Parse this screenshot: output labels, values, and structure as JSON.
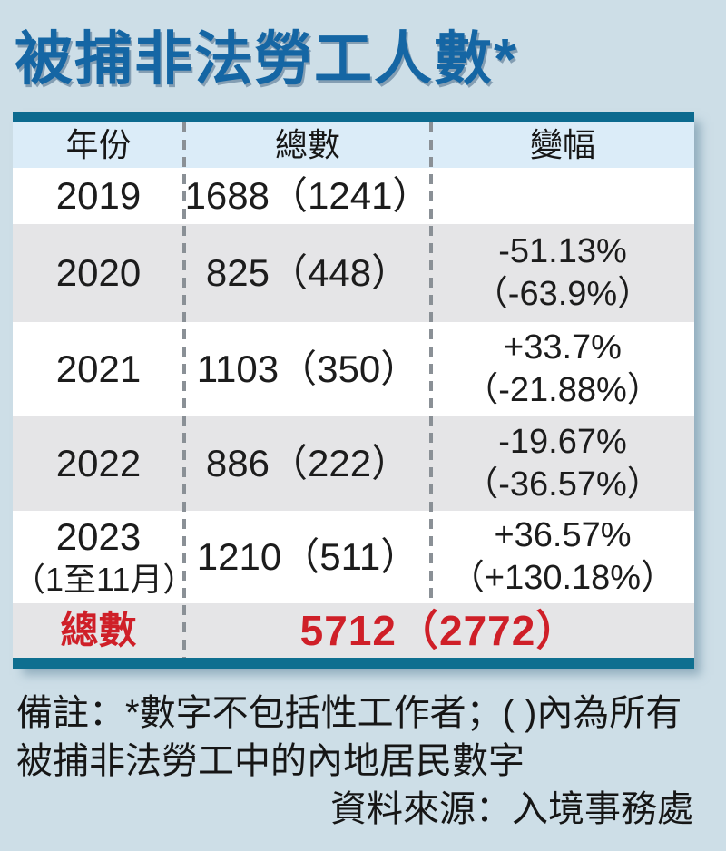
{
  "title": "被捕非法勞工人數*",
  "colors": {
    "background": "#cddee7",
    "title_blue": "#1566a4",
    "table_border_teal": "#0c6a8f",
    "header_row_blue": "#dbecf8",
    "alt_row_gray": "#e5e5e7",
    "highlight_red": "#cf1f28",
    "text_black": "#1c1c1c"
  },
  "table": {
    "headers": [
      "年份",
      "總數",
      "變幅"
    ],
    "rows": [
      {
        "year": "2019",
        "year_note": "",
        "total": "1688（1241）",
        "change1": "",
        "change2": ""
      },
      {
        "year": "2020",
        "year_note": "",
        "total": "825（448）",
        "change1": "-51.13%",
        "change2": "（-63.9%）"
      },
      {
        "year": "2021",
        "year_note": "",
        "total": "1103（350）",
        "change1": "+33.7%",
        "change2": "（-21.88%）"
      },
      {
        "year": "2022",
        "year_note": "",
        "total": "886（222）",
        "change1": "-19.67%",
        "change2": "（-36.57%）"
      },
      {
        "year": "2023",
        "year_note": "（1至11月）",
        "total": "1210（511）",
        "change1": "+36.57%",
        "change2": "（+130.18%）"
      }
    ],
    "total_row": {
      "label": "總數",
      "value": "5712（2772）"
    }
  },
  "notes": {
    "line1": "備註：*數字不包括性工作者；( )內為所有",
    "line2": "被捕非法勞工中的內地居民數字",
    "source": "資料來源：入境事務處"
  },
  "chart_data": {
    "type": "table",
    "title": "被捕非法勞工人數*",
    "columns": [
      "年份",
      "總數",
      "變幅"
    ],
    "rows": [
      [
        "2019",
        "1688（1241）",
        ""
      ],
      [
        "2020",
        "825（448）",
        "-51.13%（-63.9%）"
      ],
      [
        "2021",
        "1103（350）",
        "+33.7%（-21.88%）"
      ],
      [
        "2022",
        "886（222）",
        "-19.67%（-36.57%）"
      ],
      [
        "2023（1至11月）",
        "1210（511）",
        "+36.57%（+130.18%）"
      ],
      [
        "總數",
        "5712（2772）",
        ""
      ]
    ],
    "numeric": {
      "years": [
        "2019",
        "2020",
        "2021",
        "2022",
        "2023 (1至11月)"
      ],
      "total_arrested": [
        1688,
        825,
        1103,
        886,
        1210
      ],
      "mainland_residents_in_parentheses": [
        1241,
        448,
        350,
        222,
        511
      ],
      "change_total_pct": [
        null,
        -51.13,
        33.7,
        -19.67,
        36.57
      ],
      "change_mainland_pct": [
        null,
        -63.9,
        -21.88,
        -36.57,
        130.18
      ],
      "grand_total": 5712,
      "grand_total_mainland": 2772
    },
    "footnote": "*數字不包括性工作者；( )內為所有被捕非法勞工中的內地居民數字",
    "source": "入境事務處"
  }
}
